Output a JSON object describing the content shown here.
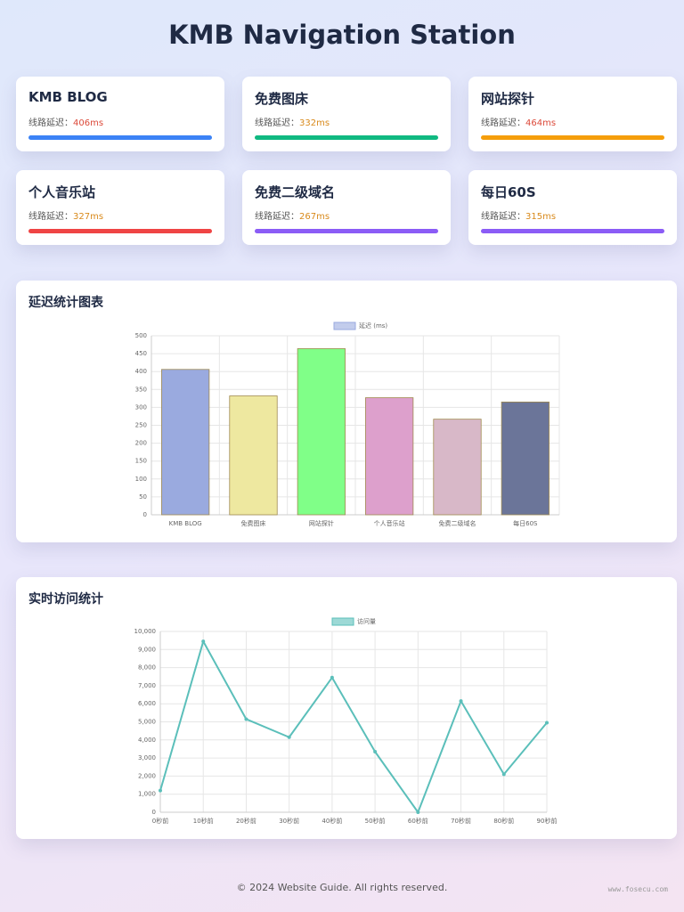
{
  "header": {
    "title": "KMB Navigation Station"
  },
  "cards": [
    {
      "name": "KMB BLOG",
      "label": "线路延迟：",
      "latency": "406ms",
      "latency_color": "#dc4a3a",
      "bar_color": "#3b82f6"
    },
    {
      "name": "免费图床",
      "label": "线路延迟：",
      "latency": "332ms",
      "latency_color": "#d98a1c",
      "bar_color": "#10b981"
    },
    {
      "name": "网站探针",
      "label": "线路延迟：",
      "latency": "464ms",
      "latency_color": "#dc4a3a",
      "bar_color": "#f59e0b"
    },
    {
      "name": "个人音乐站",
      "label": "线路延迟：",
      "latency": "327ms",
      "latency_color": "#d98a1c",
      "bar_color": "#ef4444"
    },
    {
      "name": "免费二级域名",
      "label": "线路延迟：",
      "latency": "267ms",
      "latency_color": "#d98a1c",
      "bar_color": "#8b5cf6"
    },
    {
      "name": "每日60S",
      "label": "线路延迟：",
      "latency": "315ms",
      "latency_color": "#d98a1c",
      "bar_color": "#8b5cf6"
    }
  ],
  "chart_data": [
    {
      "type": "bar",
      "title": "延迟统计图表",
      "categories": [
        "KMB BLOG",
        "免费图床",
        "网站探针",
        "个人音乐站",
        "免费二级域名",
        "每日60S"
      ],
      "series": [
        {
          "name": "延迟 (ms)",
          "values": [
            406,
            332,
            464,
            327,
            267,
            315
          ],
          "colors": [
            "#9aaadf",
            "#eee8a0",
            "#80ff88",
            "#dda0cc",
            "#d8b8c8",
            "#6b7599"
          ]
        }
      ],
      "ylim": [
        0,
        500
      ],
      "yticks": [
        0,
        50,
        100,
        150,
        200,
        250,
        300,
        350,
        400,
        450,
        500
      ],
      "grid": true
    },
    {
      "type": "line",
      "title": "实时访问统计",
      "categories": [
        "0秒前",
        "10秒前",
        "20秒前",
        "30秒前",
        "40秒前",
        "50秒前",
        "60秒前",
        "70秒前",
        "80秒前",
        "90秒前"
      ],
      "series": [
        {
          "name": "访问量",
          "color": "#5bbfba",
          "values": [
            1200,
            9450,
            5150,
            4150,
            7450,
            3350,
            0,
            6150,
            2100,
            4950
          ]
        }
      ],
      "ylim": [
        0,
        10000
      ],
      "yticks": [
        0,
        {
          "value": 1000,
          "label": "1,000"
        },
        {
          "value": 2000,
          "label": "2,000"
        },
        {
          "value": 3000,
          "label": "3,000"
        },
        {
          "value": 4000,
          "label": "4,000"
        },
        {
          "value": 5000,
          "label": "5,000"
        },
        {
          "value": 6000,
          "label": "6,000"
        },
        {
          "value": 7000,
          "label": "7,000"
        },
        {
          "value": 8000,
          "label": "8,000"
        },
        {
          "value": 9000,
          "label": "9,000"
        },
        {
          "value": 10000,
          "label": "10,000"
        }
      ],
      "grid": true
    }
  ],
  "footer": {
    "text": "© 2024 Website Guide. All rights reserved.",
    "watermark": "www.fosecu.com"
  }
}
